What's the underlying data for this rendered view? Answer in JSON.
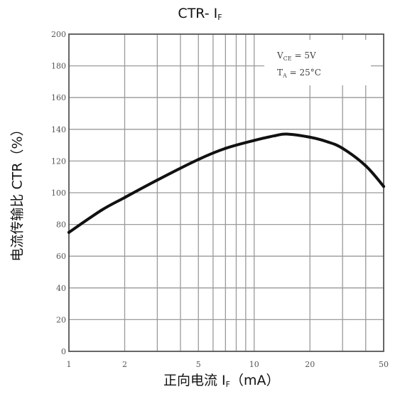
{
  "chart_data": {
    "type": "line",
    "title_main": "CTR- I",
    "title_sub": "F",
    "xlabel_main": "正向电流 I",
    "xlabel_sub": "F",
    "xlabel_unit": "（mA）",
    "ylabel": "电流传输比 CTR（%）",
    "xscale": "log",
    "xlim": [
      1,
      50
    ],
    "ylim": [
      0,
      200
    ],
    "xticks": [
      1,
      2,
      5,
      10,
      20,
      50
    ],
    "xtick_labels": [
      "1",
      "2",
      "5",
      "10",
      "20",
      "50"
    ],
    "yticks": [
      0,
      20,
      40,
      60,
      80,
      100,
      120,
      140,
      160,
      180,
      200
    ],
    "ytick_labels": [
      "0",
      "20",
      "40",
      "60",
      "80",
      "100",
      "120",
      "140",
      "160",
      "180",
      "200"
    ],
    "grid": true,
    "annotation_line1": "V",
    "annotation_line1_sub": "CE",
    "annotation_line1_tail": " = 5V",
    "annotation_line2": "T",
    "annotation_line2_sub": "A",
    "annotation_line2_tail": " = 25°C",
    "series": [
      {
        "x": [
          1,
          1.5,
          2,
          3,
          5,
          7,
          10,
          13,
          15,
          20,
          25,
          30,
          40,
          50
        ],
        "values": [
          75,
          89,
          97,
          108,
          121,
          128,
          133,
          136,
          137,
          135,
          132,
          128,
          117,
          104
        ]
      }
    ]
  }
}
